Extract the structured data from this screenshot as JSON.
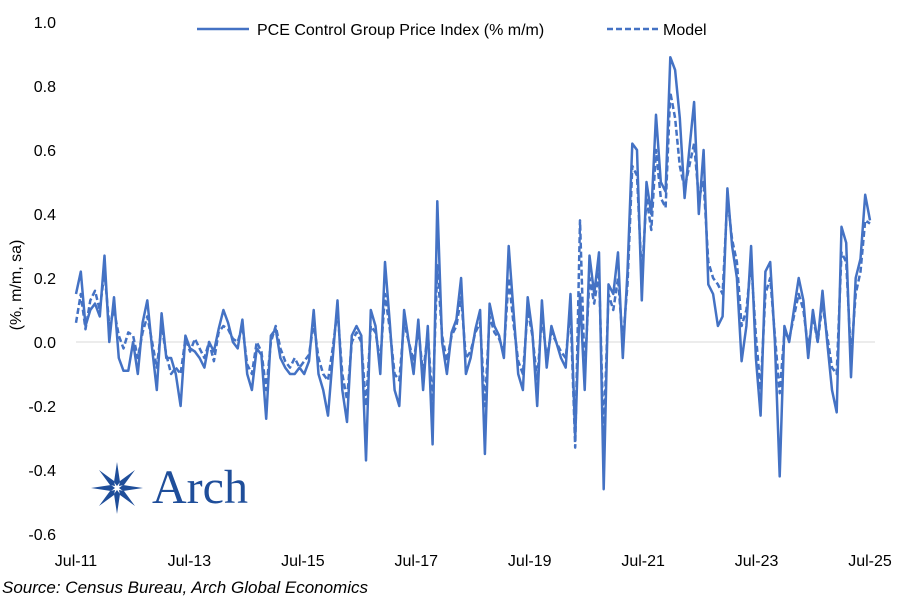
{
  "chart_data": {
    "type": "line",
    "title": "",
    "xlabel": "",
    "ylabel": "(%, m/m, sa)",
    "ylim": [
      -0.6,
      1.0
    ],
    "yticks": [
      "1.0",
      "0.8",
      "0.6",
      "0.4",
      "0.2",
      "0.0",
      "-0.2",
      "-0.4",
      "-0.6"
    ],
    "xticks": [
      "Jul-11",
      "Jul-13",
      "Jul-15",
      "Jul-17",
      "Jul-19",
      "Jul-21",
      "Jul-23",
      "Jul-25"
    ],
    "x_start": "2011-07",
    "x_end": "2025-07",
    "series": [
      {
        "name": "PCE Control Group Price Index (% m/m)",
        "style": "solid",
        "color": "#4472c4",
        "values": [
          0.15,
          0.22,
          0.05,
          0.1,
          0.12,
          0.08,
          0.27,
          0.0,
          0.14,
          -0.05,
          -0.09,
          -0.09,
          0.0,
          -0.1,
          0.06,
          0.13,
          -0.02,
          -0.15,
          0.09,
          -0.05,
          -0.05,
          -0.1,
          -0.2,
          0.02,
          -0.02,
          -0.03,
          -0.05,
          -0.08,
          0.0,
          -0.03,
          0.04,
          0.1,
          0.06,
          0.0,
          -0.02,
          0.07,
          -0.1,
          -0.15,
          -0.02,
          -0.04,
          -0.24,
          0.02,
          0.04,
          -0.05,
          -0.08,
          -0.1,
          -0.1,
          -0.08,
          -0.1,
          -0.06,
          0.1,
          -0.1,
          -0.15,
          -0.23,
          -0.05,
          0.13,
          -0.15,
          -0.25,
          0.02,
          0.05,
          0.02,
          -0.37,
          0.1,
          0.05,
          -0.1,
          0.25,
          0.06,
          -0.15,
          -0.2,
          0.1,
          0.0,
          -0.1,
          0.07,
          -0.15,
          0.05,
          -0.32,
          0.44,
          0.0,
          -0.1,
          0.03,
          0.07,
          0.2,
          -0.1,
          -0.05,
          0.04,
          0.1,
          -0.35,
          0.12,
          0.05,
          0.02,
          -0.05,
          0.3,
          0.1,
          -0.1,
          -0.15,
          0.14,
          0.03,
          -0.2,
          0.13,
          -0.08,
          0.05,
          0.0,
          -0.05,
          -0.08,
          0.15,
          -0.3,
          0.15,
          -0.15,
          0.27,
          0.15,
          0.28,
          -0.46,
          0.18,
          0.15,
          0.28,
          -0.05,
          0.22,
          0.62,
          0.6,
          0.13,
          0.5,
          0.4,
          0.71,
          0.5,
          0.47,
          0.89,
          0.85,
          0.7,
          0.45,
          0.6,
          0.75,
          0.4,
          0.6,
          0.18,
          0.15,
          0.05,
          0.08,
          0.48,
          0.3,
          0.2,
          -0.06,
          0.05,
          0.3,
          -0.05,
          -0.23,
          0.22,
          0.25,
          0.0,
          -0.42,
          0.05,
          0.0,
          0.1,
          0.2,
          0.13,
          -0.05,
          0.1,
          0.0,
          0.16,
          0.0,
          -0.15,
          -0.22,
          0.36,
          0.31,
          -0.11,
          0.2,
          0.26,
          0.46,
          0.38
        ]
      },
      {
        "name": "Model",
        "style": "dashed",
        "color": "#4472c4",
        "values": [
          0.06,
          0.15,
          0.04,
          0.13,
          0.16,
          0.1,
          0.22,
          0.05,
          0.1,
          0.02,
          -0.02,
          0.03,
          0.02,
          -0.05,
          0.03,
          0.08,
          0.0,
          -0.08,
          0.05,
          -0.04,
          -0.1,
          -0.08,
          -0.1,
          0.01,
          -0.03,
          0.01,
          -0.02,
          -0.05,
          0.0,
          -0.06,
          0.03,
          0.05,
          0.04,
          0.01,
          0.0,
          0.05,
          -0.07,
          -0.1,
          0.0,
          -0.03,
          -0.15,
          0.0,
          0.05,
          -0.02,
          -0.06,
          -0.08,
          -0.05,
          -0.08,
          -0.06,
          -0.04,
          0.06,
          -0.05,
          -0.1,
          -0.12,
          -0.02,
          0.1,
          -0.1,
          -0.18,
          0.0,
          0.03,
          0.0,
          -0.2,
          0.05,
          0.03,
          -0.06,
          0.15,
          0.04,
          -0.1,
          -0.12,
          0.06,
          0.0,
          -0.06,
          0.04,
          -0.1,
          0.03,
          -0.2,
          0.24,
          0.02,
          -0.06,
          0.02,
          0.05,
          0.14,
          -0.05,
          -0.03,
          0.03,
          0.06,
          -0.2,
          0.08,
          0.03,
          0.01,
          -0.03,
          0.2,
          0.06,
          -0.06,
          -0.1,
          0.1,
          0.02,
          -0.12,
          0.08,
          -0.05,
          0.03,
          0.0,
          -0.03,
          -0.05,
          0.1,
          -0.33,
          0.38,
          -0.1,
          0.2,
          0.12,
          0.22,
          -0.3,
          0.15,
          0.1,
          0.2,
          0.0,
          0.18,
          0.55,
          0.52,
          0.2,
          0.45,
          0.35,
          0.6,
          0.45,
          0.42,
          0.78,
          0.7,
          0.55,
          0.48,
          0.55,
          0.62,
          0.45,
          0.5,
          0.25,
          0.2,
          0.18,
          0.15,
          0.45,
          0.32,
          0.25,
          0.05,
          0.1,
          0.25,
          0.02,
          -0.15,
          0.15,
          0.2,
          0.02,
          -0.16,
          0.03,
          0.01,
          0.08,
          0.15,
          0.1,
          -0.02,
          0.08,
          0.0,
          0.12,
          0.02,
          -0.08,
          -0.1,
          0.28,
          0.25,
          -0.05,
          0.15,
          0.22,
          0.38,
          0.37
        ]
      }
    ],
    "legend_position": "top"
  },
  "logo": {
    "text": "Arch"
  },
  "source_text": "Source: Census Bureau, Arch Global Economics",
  "colors": {
    "line": "#4472c4",
    "logo": "#1f4e9a",
    "axis": "#d9d9d9"
  }
}
